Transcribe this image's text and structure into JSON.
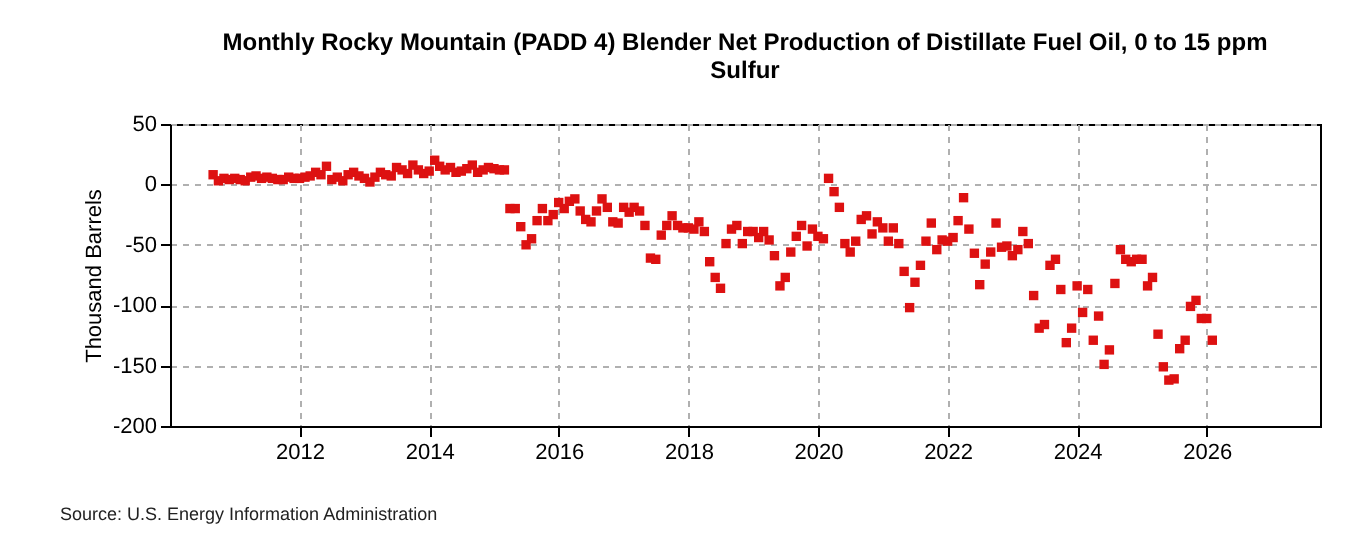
{
  "chart_data": {
    "type": "scatter",
    "title": "Monthly Rocky Mountain (PADD 4) Blender Net Production of Distillate Fuel Oil, 0 to 15 ppm Sulfur",
    "ylabel": "Thousand Barrels",
    "annotations": [
      "Source: U.S. Energy Information Administration"
    ],
    "x": [
      "2010-09",
      "2010-10",
      "2010-11",
      "2010-12",
      "2011-01",
      "2011-02",
      "2011-03",
      "2011-04",
      "2011-05",
      "2011-06",
      "2011-07",
      "2011-08",
      "2011-09",
      "2011-10",
      "2011-11",
      "2011-12",
      "2012-01",
      "2012-02",
      "2012-03",
      "2012-04",
      "2012-05",
      "2012-06",
      "2012-07",
      "2012-08",
      "2012-09",
      "2012-10",
      "2012-11",
      "2012-12",
      "2013-01",
      "2013-02",
      "2013-03",
      "2013-04",
      "2013-05",
      "2013-06",
      "2013-07",
      "2013-08",
      "2013-09",
      "2013-10",
      "2013-11",
      "2013-12",
      "2014-01",
      "2014-02",
      "2014-03",
      "2014-04",
      "2014-05",
      "2014-06",
      "2014-07",
      "2014-08",
      "2014-09",
      "2014-10",
      "2014-11",
      "2014-12",
      "2015-01",
      "2015-02",
      "2015-03",
      "2015-04",
      "2015-05",
      "2015-06",
      "2015-07",
      "2015-08",
      "2015-09",
      "2015-10",
      "2015-11",
      "2015-12",
      "2016-01",
      "2016-02",
      "2016-03",
      "2016-04",
      "2016-05",
      "2016-06",
      "2016-07",
      "2016-08",
      "2016-09",
      "2016-10",
      "2016-11",
      "2016-12",
      "2017-01",
      "2017-02",
      "2017-03",
      "2017-04",
      "2017-05",
      "2017-06",
      "2017-07",
      "2017-08",
      "2017-09",
      "2017-10",
      "2017-11",
      "2017-12",
      "2018-01",
      "2018-02",
      "2018-03",
      "2018-04",
      "2018-05",
      "2018-06",
      "2018-07",
      "2018-08",
      "2018-09",
      "2018-10",
      "2018-11",
      "2018-12",
      "2019-01",
      "2019-02",
      "2019-03",
      "2019-04",
      "2019-05",
      "2019-06",
      "2019-07",
      "2019-08",
      "2019-09",
      "2019-10",
      "2019-11",
      "2019-12",
      "2020-01",
      "2020-02",
      "2020-03",
      "2020-04",
      "2020-05",
      "2020-06",
      "2020-07",
      "2020-08",
      "2020-09",
      "2020-10",
      "2020-11",
      "2020-12",
      "2021-01",
      "2021-02",
      "2021-03",
      "2021-04",
      "2021-05",
      "2021-06",
      "2021-07",
      "2021-08",
      "2021-09",
      "2021-10",
      "2021-11",
      "2021-12",
      "2022-01",
      "2022-02",
      "2022-03",
      "2022-04",
      "2022-05",
      "2022-06",
      "2022-07",
      "2022-08",
      "2022-09",
      "2022-10",
      "2022-11",
      "2022-12",
      "2023-01",
      "2023-02",
      "2023-03",
      "2023-04",
      "2023-05",
      "2023-06",
      "2023-07",
      "2023-08",
      "2023-09",
      "2023-10",
      "2023-11",
      "2023-12",
      "2024-01",
      "2024-02",
      "2024-03",
      "2024-04",
      "2024-05",
      "2024-06",
      "2024-07",
      "2024-08",
      "2024-09",
      "2024-10",
      "2024-11",
      "2024-12",
      "2025-01",
      "2025-02",
      "2025-03",
      "2025-04",
      "2025-05",
      "2025-06",
      "2025-07",
      "2025-08",
      "2025-09",
      "2025-10",
      "2025-11",
      "2025-12",
      "2026-01",
      "2026-02"
    ],
    "series": [
      {
        "color": "#dd1111",
        "values": [
          8,
          3,
          5,
          4,
          5,
          4,
          3,
          6,
          7,
          5,
          6,
          5,
          4,
          4,
          6,
          5,
          5,
          6,
          7,
          10,
          8,
          15,
          4,
          6,
          3,
          8,
          10,
          7,
          5,
          2,
          6,
          10,
          8,
          7,
          14,
          12,
          9,
          16,
          12,
          9,
          11,
          20,
          15,
          12,
          14,
          10,
          11,
          13,
          16,
          10,
          12,
          14,
          13,
          12,
          12,
          -20,
          -20,
          -35,
          -50,
          -45,
          -30,
          -20,
          -30,
          -25,
          -15,
          -20,
          -14,
          -12,
          -22,
          -29,
          -31,
          -22,
          -12,
          -19,
          -31,
          -32,
          -19,
          -23,
          -19,
          -22,
          -34,
          -61,
          -62,
          -42,
          -34,
          -26,
          -34,
          -36,
          -36,
          -37,
          -31,
          -39,
          -64,
          -77,
          -86,
          -49,
          -37,
          -34,
          -49,
          -39,
          -39,
          -44,
          -39,
          -46,
          -59,
          -84,
          -77,
          -56,
          -43,
          -34,
          -51,
          -37,
          -43,
          -45,
          5,
          -6,
          -19,
          -49,
          -56,
          -47,
          -29,
          -26,
          -41,
          -31,
          -36,
          -47,
          -36,
          -49,
          -72,
          -102,
          -81,
          -67,
          -47,
          -32,
          -54,
          -46,
          -47,
          -44,
          -30,
          -11,
          -37,
          -57,
          -83,
          -66,
          -56,
          -32,
          -52,
          -51,
          -59,
          -54,
          -39,
          -49,
          -92,
          -119,
          -116,
          -67,
          -62,
          -87,
          -131,
          -119,
          -84,
          -106,
          -87,
          -129,
          -109,
          -149,
          -137,
          -82,
          -54,
          -62,
          -64,
          -62,
          -62,
          -84,
          -77,
          -124,
          -151,
          -162,
          -161,
          -136,
          -129,
          -101,
          -96,
          -111,
          -111,
          -129
        ]
      }
    ],
    "xlim": [
      "2010-01",
      "2027-10"
    ],
    "xticks": [
      {
        "value": "2012",
        "label": "2012"
      },
      {
        "value": "2014",
        "label": "2014"
      },
      {
        "value": "2016",
        "label": "2016"
      },
      {
        "value": "2018",
        "label": "2018"
      },
      {
        "value": "2020",
        "label": "2020"
      },
      {
        "value": "2022",
        "label": "2022"
      },
      {
        "value": "2024",
        "label": "2024"
      },
      {
        "value": "2026",
        "label": "2026"
      }
    ],
    "ylim": [
      -200,
      50
    ],
    "yticks": [
      -200,
      -150,
      -100,
      -50,
      0,
      50
    ],
    "grid": true,
    "marker": "square"
  }
}
